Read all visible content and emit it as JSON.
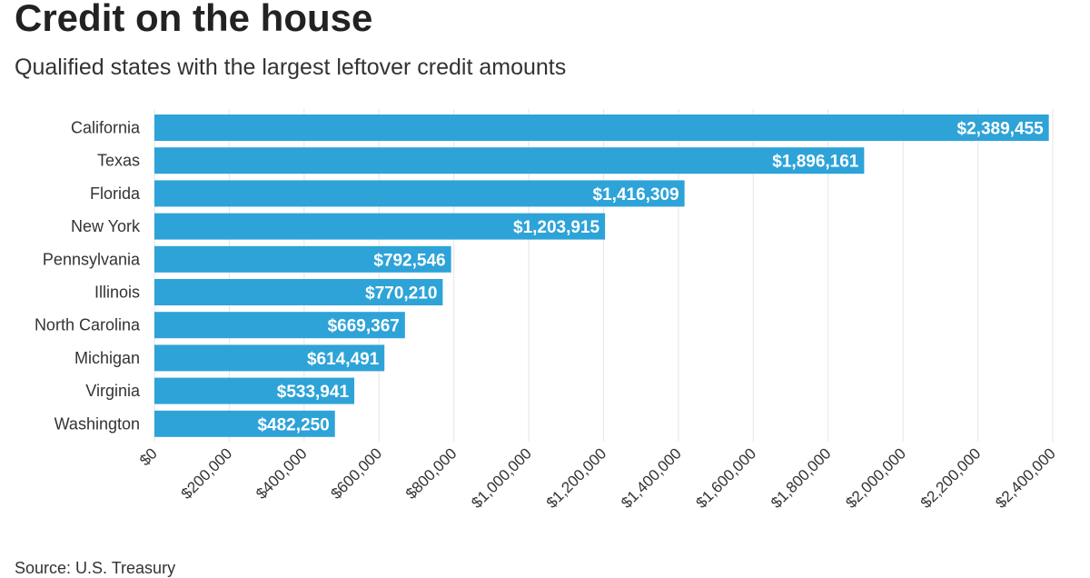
{
  "header": {
    "title": "Credit on the house",
    "subtitle": "Qualified states with the largest leftover credit amounts"
  },
  "footer": {
    "source": "Source: U.S. Treasury"
  },
  "colors": {
    "bar": "#2ea3d8",
    "grid": "#e6e6e6",
    "text": "#333333"
  },
  "chart_data": {
    "type": "bar",
    "orientation": "horizontal",
    "title": "Credit on the house",
    "subtitle": "Qualified states with the largest leftover credit amounts",
    "categories": [
      "California",
      "Texas",
      "Florida",
      "New York",
      "Pennsylvania",
      "Illinois",
      "North Carolina",
      "Michigan",
      "Virginia",
      "Washington"
    ],
    "values": [
      2389455,
      1896161,
      1416309,
      1203915,
      792546,
      770210,
      669367,
      614491,
      533941,
      482250
    ],
    "data_labels": [
      "$2,389,455",
      "$1,896,161",
      "$1,416,309",
      "$1,203,915",
      "$792,546",
      "$770,210",
      "$669,367",
      "$614,491",
      "$533,941",
      "$482,250"
    ],
    "xlim": [
      0,
      2400000
    ],
    "x_ticks": [
      0,
      200000,
      400000,
      600000,
      800000,
      1000000,
      1200000,
      1400000,
      1600000,
      1800000,
      2000000,
      2200000,
      2400000
    ],
    "x_tick_labels": [
      "$0",
      "$200,000",
      "$400,000",
      "$600,000",
      "$800,000",
      "$1,000,000",
      "$1,200,000",
      "$1,400,000",
      "$1,600,000",
      "$1,800,000",
      "$2,000,000",
      "$2,200,000",
      "$2,400,000"
    ],
    "xlabel": "",
    "ylabel": "",
    "grid": true,
    "legend": "none"
  }
}
